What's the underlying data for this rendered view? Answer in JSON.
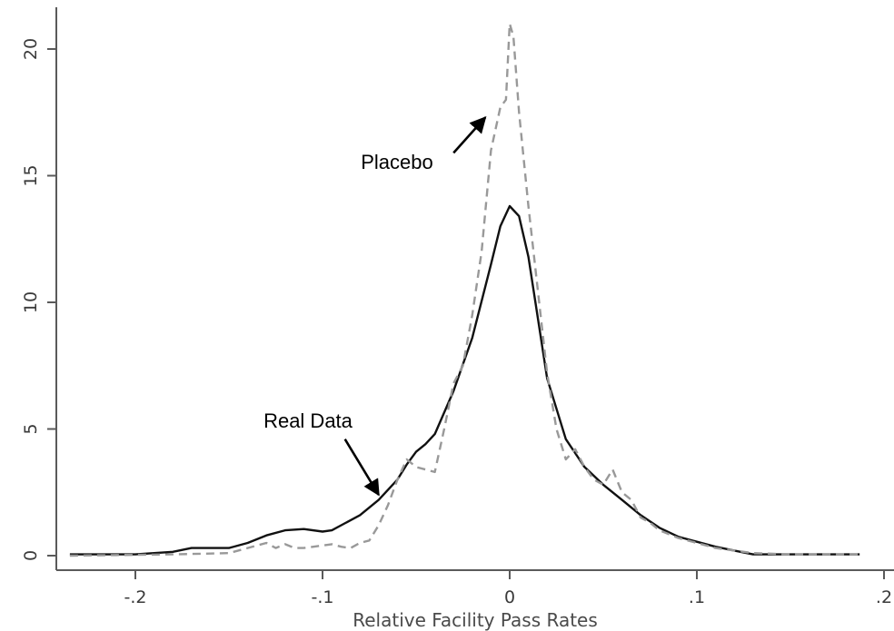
{
  "chart_data": {
    "type": "line",
    "xlabel": "Relative Facility Pass Rates",
    "ylabel": "",
    "xlim": [
      -0.24,
      0.2
    ],
    "ylim": [
      0,
      22
    ],
    "x_ticks": [
      {
        "value": -0.2,
        "label": "-.2"
      },
      {
        "value": -0.1,
        "label": "-.1"
      },
      {
        "value": 0,
        "label": "0"
      },
      {
        "value": 0.1,
        "label": ".1"
      },
      {
        "value": 0.2,
        "label": ".2"
      }
    ],
    "y_ticks": [
      {
        "value": 0,
        "label": "0"
      },
      {
        "value": 5,
        "label": "5"
      },
      {
        "value": 10,
        "label": "10"
      },
      {
        "value": 15,
        "label": "15"
      },
      {
        "value": 20,
        "label": "20"
      }
    ],
    "grid": false,
    "series": [
      {
        "name": "Real Data",
        "style": "solid",
        "color": "#111111",
        "x": [
          -0.235,
          -0.2,
          -0.18,
          -0.17,
          -0.15,
          -0.14,
          -0.13,
          -0.12,
          -0.11,
          -0.1,
          -0.095,
          -0.09,
          -0.08,
          -0.07,
          -0.06,
          -0.055,
          -0.05,
          -0.045,
          -0.04,
          -0.03,
          -0.02,
          -0.01,
          -0.005,
          0,
          0.005,
          0.01,
          0.02,
          0.03,
          0.04,
          0.05,
          0.06,
          0.07,
          0.08,
          0.09,
          0.1,
          0.11,
          0.12,
          0.13,
          0.15,
          0.18,
          0.187
        ],
        "y": [
          0.05,
          0.05,
          0.15,
          0.3,
          0.3,
          0.5,
          0.8,
          1.0,
          1.05,
          0.95,
          1.0,
          1.2,
          1.6,
          2.2,
          3.0,
          3.6,
          4.1,
          4.4,
          4.8,
          6.5,
          8.6,
          11.5,
          13.0,
          13.8,
          13.4,
          11.8,
          7.0,
          4.6,
          3.5,
          2.8,
          2.2,
          1.6,
          1.1,
          0.75,
          0.55,
          0.35,
          0.2,
          0.05,
          0.05,
          0.05,
          0.05
        ]
      },
      {
        "name": "Placebo",
        "style": "dashed",
        "color": "#999999",
        "x": [
          -0.235,
          -0.18,
          -0.15,
          -0.13,
          -0.125,
          -0.12,
          -0.115,
          -0.11,
          -0.1,
          -0.095,
          -0.09,
          -0.085,
          -0.08,
          -0.075,
          -0.07,
          -0.065,
          -0.06,
          -0.055,
          -0.05,
          -0.045,
          -0.04,
          -0.035,
          -0.03,
          -0.025,
          -0.02,
          -0.015,
          -0.01,
          -0.005,
          -0.002,
          0,
          0.002,
          0.005,
          0.01,
          0.015,
          0.02,
          0.025,
          0.03,
          0.035,
          0.04,
          0.045,
          0.05,
          0.055,
          0.06,
          0.065,
          0.07,
          0.075,
          0.08,
          0.09,
          0.1,
          0.11,
          0.12,
          0.13,
          0.15,
          0.187
        ],
        "y": [
          0,
          0.05,
          0.1,
          0.5,
          0.3,
          0.45,
          0.3,
          0.3,
          0.4,
          0.45,
          0.35,
          0.3,
          0.5,
          0.6,
          1.2,
          2.0,
          3.0,
          3.8,
          3.5,
          3.4,
          3.3,
          5.0,
          6.8,
          7.5,
          9.5,
          12.0,
          16.0,
          17.7,
          18.0,
          21.0,
          20.5,
          17.5,
          13.8,
          10.5,
          7.2,
          5.0,
          3.8,
          4.2,
          3.5,
          3.0,
          2.8,
          3.4,
          2.5,
          2.2,
          1.5,
          1.3,
          1.0,
          0.7,
          0.5,
          0.3,
          0.2,
          0.1,
          0.05,
          0.05
        ]
      }
    ],
    "annotations": [
      {
        "text": "Placebo",
        "arrow_from": [
          -0.03,
          15.9
        ],
        "arrow_to": [
          -0.013,
          17.3
        ]
      },
      {
        "text": "Real Data",
        "arrow_from": [
          -0.088,
          4.6
        ],
        "arrow_to": [
          -0.07,
          2.4
        ]
      }
    ]
  }
}
